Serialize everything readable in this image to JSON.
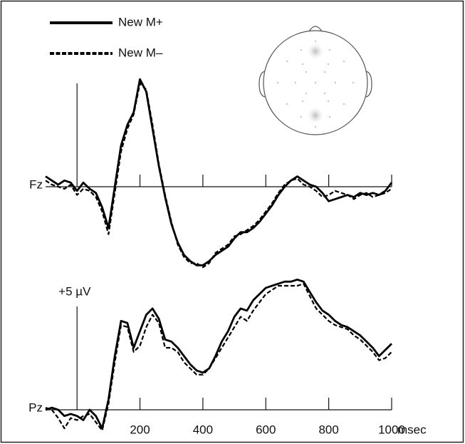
{
  "chart_data": [
    {
      "type": "line",
      "label": "Fz",
      "x": [
        -100,
        -80,
        -60,
        -40,
        -20,
        0,
        20,
        40,
        60,
        80,
        100,
        120,
        140,
        160,
        180,
        200,
        220,
        240,
        260,
        280,
        300,
        320,
        340,
        360,
        380,
        400,
        420,
        440,
        460,
        480,
        500,
        520,
        540,
        560,
        580,
        600,
        620,
        640,
        660,
        680,
        700,
        720,
        740,
        760,
        780,
        800,
        820,
        840,
        860,
        880,
        900,
        920,
        940,
        960,
        980,
        1000
      ],
      "xlim": [
        -100,
        1000
      ],
      "ylim": [
        -4,
        5.5
      ],
      "xticks": [
        200,
        400,
        600,
        800,
        1000
      ],
      "tick_labels": false,
      "calibration_bar": 5,
      "series": [
        {
          "name": "New M+",
          "color": "#000000",
          "dash": false,
          "values": [
            0.5,
            0.3,
            0.1,
            0.3,
            0.2,
            -0.2,
            0.2,
            -0.1,
            -0.3,
            -1.0,
            -2.0,
            0.0,
            2.0,
            3.0,
            3.6,
            5.2,
            4.6,
            2.8,
            1.0,
            -0.5,
            -1.8,
            -2.7,
            -3.3,
            -3.6,
            -3.8,
            -3.8,
            -3.6,
            -3.3,
            -3.1,
            -2.9,
            -2.5,
            -2.2,
            -2.2,
            -2.0,
            -1.7,
            -1.3,
            -0.9,
            -0.4,
            0.0,
            0.3,
            0.5,
            0.3,
            0.1,
            0.0,
            -0.3,
            -0.7,
            -0.6,
            -0.5,
            -0.4,
            -0.5,
            -0.3,
            -0.4,
            -0.3,
            -0.4,
            -0.2,
            0.2
          ]
        },
        {
          "name": "New M–",
          "color": "#000000",
          "dash": true,
          "values": [
            0.3,
            0.1,
            0.0,
            -0.1,
            0.1,
            -0.4,
            -0.1,
            -0.2,
            -0.5,
            -1.2,
            -2.3,
            -0.3,
            1.7,
            2.8,
            3.5,
            5.0,
            4.7,
            3.0,
            1.1,
            -0.4,
            -1.7,
            -2.8,
            -3.4,
            -3.7,
            -3.7,
            -3.9,
            -3.7,
            -3.2,
            -3.0,
            -2.8,
            -2.4,
            -2.3,
            -2.1,
            -1.9,
            -1.6,
            -1.2,
            -0.8,
            -0.3,
            0.1,
            0.3,
            0.4,
            0.1,
            0.0,
            -0.2,
            -0.5,
            -0.4,
            -0.2,
            -0.3,
            -0.4,
            -0.6,
            -0.4,
            -0.3,
            -0.5,
            -0.4,
            -0.3,
            -0.1
          ]
        }
      ]
    },
    {
      "type": "line",
      "label": "Pz",
      "x": [
        -100,
        -80,
        -60,
        -40,
        -20,
        0,
        20,
        40,
        60,
        80,
        100,
        120,
        140,
        160,
        180,
        200,
        220,
        240,
        260,
        280,
        300,
        320,
        340,
        360,
        380,
        400,
        420,
        440,
        460,
        480,
        500,
        520,
        540,
        560,
        580,
        600,
        620,
        640,
        660,
        680,
        700,
        720,
        740,
        760,
        780,
        800,
        820,
        840,
        860,
        880,
        900,
        920,
        940,
        960,
        980,
        1000
      ],
      "xlim": [
        -100,
        1000
      ],
      "ylim": [
        -1,
        6.5
      ],
      "xticks": [
        200,
        400,
        600,
        800,
        1000
      ],
      "tick_labels": true,
      "x_label": "msec",
      "annotation": {
        "text": "+5 µV",
        "value": 5
      },
      "series": [
        {
          "color": "#000000",
          "dash": false,
          "values": [
            0.0,
            0.1,
            0.0,
            -0.3,
            -0.2,
            -0.3,
            -0.5,
            0.0,
            -0.3,
            -0.9,
            0.5,
            2.6,
            4.3,
            4.2,
            3.0,
            3.8,
            4.6,
            4.9,
            4.4,
            3.4,
            3.3,
            3.0,
            2.6,
            2.2,
            1.9,
            1.8,
            2.0,
            2.6,
            3.3,
            3.8,
            4.5,
            4.9,
            4.8,
            5.3,
            5.6,
            5.9,
            6.0,
            6.1,
            6.2,
            6.2,
            6.3,
            6.2,
            5.7,
            5.2,
            4.8,
            4.6,
            4.3,
            4.1,
            4.0,
            3.8,
            3.6,
            3.3,
            3.0,
            2.6,
            2.9,
            3.2
          ]
        },
        {
          "color": "#000000",
          "dash": true,
          "values": [
            0.1,
            0.0,
            -0.4,
            -0.9,
            -0.4,
            -0.5,
            -0.3,
            -0.2,
            -0.6,
            -1.0,
            0.3,
            2.3,
            4.1,
            4.0,
            2.8,
            3.1,
            4.0,
            4.6,
            4.2,
            3.0,
            3.0,
            2.8,
            2.3,
            2.0,
            1.7,
            1.7,
            2.0,
            2.5,
            3.0,
            3.5,
            4.0,
            4.5,
            4.3,
            4.8,
            5.2,
            5.6,
            5.8,
            6.0,
            6.0,
            6.0,
            6.0,
            6.1,
            5.5,
            4.9,
            4.6,
            4.3,
            4.1,
            4.0,
            3.9,
            3.6,
            3.4,
            3.1,
            2.8,
            2.4,
            2.5,
            2.8
          ]
        }
      ]
    }
  ]
}
